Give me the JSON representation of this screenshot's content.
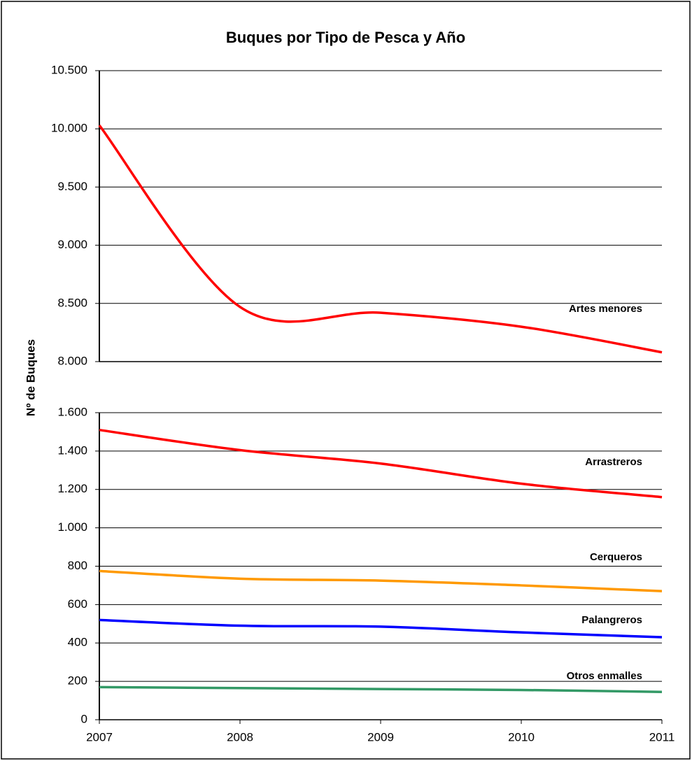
{
  "chart_data": [
    {
      "type": "line",
      "title": "Buques por Tipo de Pesca y Año",
      "ylabel": "Nº de Buques",
      "x": [
        2007,
        2008,
        2009,
        2010,
        2011
      ],
      "xlim": [
        2007,
        2011
      ],
      "ylim": [
        8000,
        10500
      ],
      "yticks": [
        {
          "value": 8000,
          "label": "8.000"
        },
        {
          "value": 8500,
          "label": "8.500"
        },
        {
          "value": 9000,
          "label": "9.000"
        },
        {
          "value": 9500,
          "label": "9.500"
        },
        {
          "value": 10000,
          "label": "10.000"
        },
        {
          "value": 10500,
          "label": "10.500"
        }
      ],
      "grid": true,
      "series": [
        {
          "name": "Artes menores",
          "color": "#ff0000",
          "values": [
            10030,
            8470,
            8420,
            8300,
            8080
          ]
        }
      ]
    },
    {
      "type": "line",
      "x": [
        2007,
        2008,
        2009,
        2010,
        2011
      ],
      "xlim": [
        2007,
        2011
      ],
      "xticks": [
        2007,
        2008,
        2009,
        2010,
        2011
      ],
      "ylim": [
        0,
        1600
      ],
      "yticks": [
        0,
        200,
        400,
        600,
        800,
        {
          "value": 1000,
          "label": "1.000"
        },
        {
          "value": 1200,
          "label": "1.200"
        },
        {
          "value": 1400,
          "label": "1.400"
        },
        {
          "value": 1600,
          "label": "1.600"
        }
      ],
      "grid": true,
      "series": [
        {
          "name": "Arrastreros",
          "color": "#ff0000",
          "values": [
            1510,
            1405,
            1335,
            1230,
            1160
          ]
        },
        {
          "name": "Cerqueros",
          "color": "#ff9900",
          "values": [
            775,
            735,
            725,
            700,
            670
          ]
        },
        {
          "name": "Palangreros",
          "color": "#0000ff",
          "values": [
            520,
            490,
            485,
            455,
            430
          ]
        },
        {
          "name": "Otros enmalles",
          "color": "#339966",
          "values": [
            170,
            165,
            160,
            155,
            145
          ]
        }
      ]
    }
  ]
}
